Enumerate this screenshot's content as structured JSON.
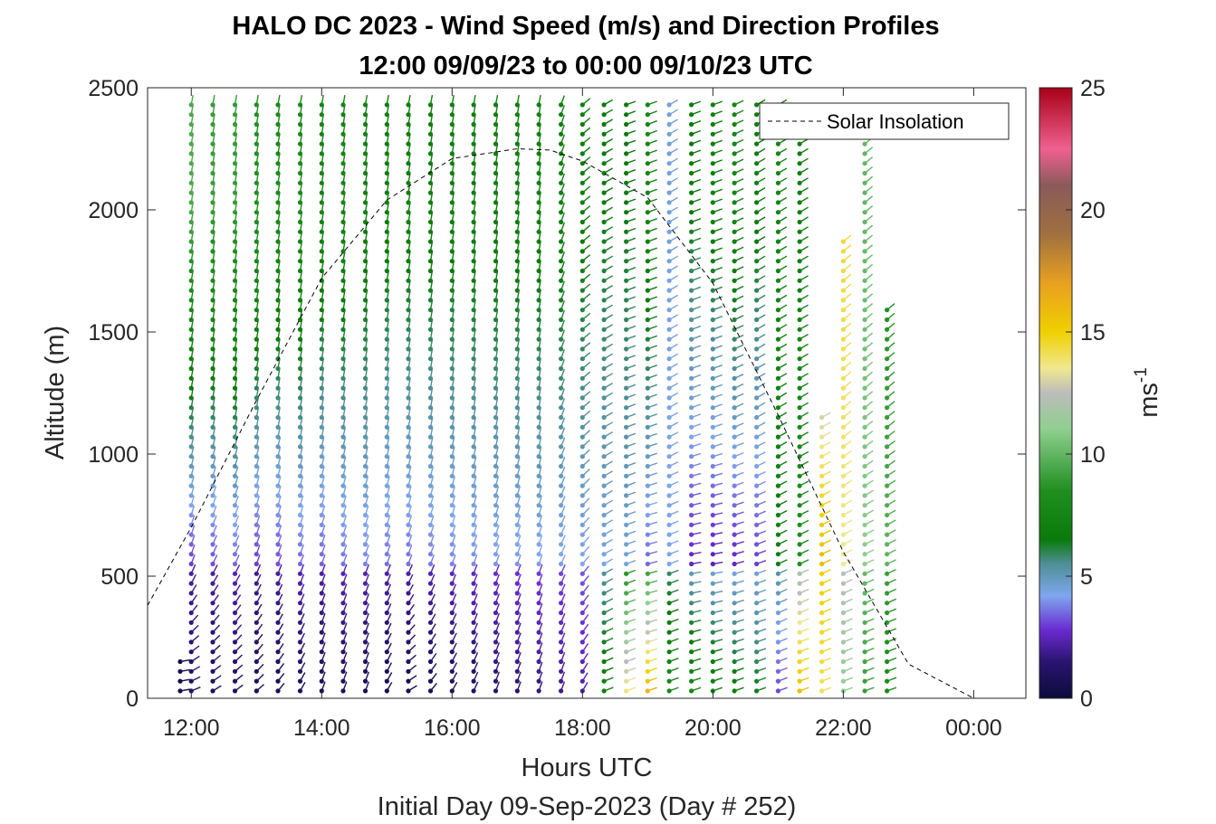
{
  "chart_data": {
    "type": "scatter",
    "title": "HALO DC 2023 - Wind Speed (m/s) and Direction Profiles",
    "subtitle": "12:00 09/09/23 to 00:00 09/10/23  UTC",
    "xlabel": "Hours UTC",
    "xlabel2": "Initial Day 09-Sep-2023 (Day # 252)",
    "ylabel": "Altitude (m)",
    "xlim": [
      11.33,
      24.8
    ],
    "ylim": [
      0,
      2500
    ],
    "x_ticks": [
      12,
      14,
      16,
      18,
      20,
      22,
      24
    ],
    "x_tick_labels": [
      "12:00",
      "14:00",
      "16:00",
      "18:00",
      "20:00",
      "22:00",
      "00:00"
    ],
    "y_ticks": [
      0,
      500,
      1000,
      1500,
      2000,
      2500
    ],
    "y_tick_labels": [
      "0",
      "500",
      "1000",
      "1500",
      "2000",
      "2500"
    ],
    "grid": false,
    "legend": {
      "entries": [
        "Solar Insolation"
      ],
      "placement": "top-right"
    },
    "colorbar": {
      "label": "ms",
      "label_exponent": "-1",
      "range": [
        0,
        25
      ],
      "ticks": [
        0,
        5,
        10,
        15,
        20,
        25
      ],
      "tick_labels": [
        "0",
        "5",
        "10",
        "15",
        "20",
        "25"
      ],
      "colormap_stops": [
        {
          "v": 0,
          "c": "#0b0b3b"
        },
        {
          "v": 1.5,
          "c": "#2b1470"
        },
        {
          "v": 2.8,
          "c": "#6a2bd0"
        },
        {
          "v": 4.2,
          "c": "#7fa6ef"
        },
        {
          "v": 5.5,
          "c": "#4f8f96"
        },
        {
          "v": 6.5,
          "c": "#0a7a0a"
        },
        {
          "v": 8.5,
          "c": "#1f8f1f"
        },
        {
          "v": 11,
          "c": "#8fcf8f"
        },
        {
          "v": 12.5,
          "c": "#bcbcbc"
        },
        {
          "v": 13.5,
          "c": "#f0e890"
        },
        {
          "v": 15,
          "c": "#f0d000"
        },
        {
          "v": 17,
          "c": "#e8a020"
        },
        {
          "v": 19,
          "c": "#a07040"
        },
        {
          "v": 21,
          "c": "#8a5a5a"
        },
        {
          "v": 22.5,
          "c": "#f06090"
        },
        {
          "v": 25,
          "c": "#a80018"
        }
      ]
    },
    "solar_insolation": {
      "style": "dashed",
      "color": "#000000",
      "x": [
        11.33,
        12.0,
        13.0,
        14.0,
        15.0,
        16.0,
        17.0,
        17.5,
        18.0,
        19.0,
        20.0,
        21.0,
        22.0,
        23.0,
        24.0,
        24.8
      ],
      "y": [
        380,
        700,
        1220,
        1720,
        2040,
        2210,
        2250,
        2245,
        2200,
        2050,
        1700,
        1160,
        600,
        140,
        0,
        0
      ]
    },
    "profiles": [
      {
        "time": 11.83,
        "top": 150,
        "low_speed": 0.5,
        "mid_speed": 0.8,
        "upper_speed": 0.8,
        "dir_low": 260,
        "dir_mid": 260,
        "dir_up": 260
      },
      {
        "time": 12.0,
        "top": 2460,
        "low_speed": 1.0,
        "mid_speed": 3.0,
        "upper_speed": 9.5,
        "dir_low": 250,
        "dir_mid": 200,
        "dir_up": 190
      },
      {
        "time": 12.33,
        "top": 2460,
        "low_speed": 0.8,
        "mid_speed": 3.2,
        "upper_speed": 9.0,
        "dir_low": 240,
        "dir_mid": 205,
        "dir_up": 190
      },
      {
        "time": 12.67,
        "top": 2460,
        "low_speed": 0.9,
        "mid_speed": 3.5,
        "upper_speed": 9.0,
        "dir_low": 235,
        "dir_mid": 205,
        "dir_up": 190
      },
      {
        "time": 13.0,
        "top": 2460,
        "low_speed": 0.7,
        "mid_speed": 3.0,
        "upper_speed": 8.5,
        "dir_low": 230,
        "dir_mid": 200,
        "dir_up": 190
      },
      {
        "time": 13.33,
        "top": 2460,
        "low_speed": 0.6,
        "mid_speed": 3.2,
        "upper_speed": 8.0,
        "dir_low": 220,
        "dir_mid": 200,
        "dir_up": 190
      },
      {
        "time": 13.67,
        "top": 2460,
        "low_speed": 0.8,
        "mid_speed": 3.5,
        "upper_speed": 8.0,
        "dir_low": 210,
        "dir_mid": 200,
        "dir_up": 190
      },
      {
        "time": 14.0,
        "top": 2460,
        "low_speed": 0.7,
        "mid_speed": 3.4,
        "upper_speed": 7.5,
        "dir_low": 200,
        "dir_mid": 200,
        "dir_up": 190
      },
      {
        "time": 14.33,
        "top": 2460,
        "low_speed": 0.8,
        "mid_speed": 3.6,
        "upper_speed": 7.5,
        "dir_low": 200,
        "dir_mid": 200,
        "dir_up": 190
      },
      {
        "time": 14.67,
        "top": 2460,
        "low_speed": 0.6,
        "mid_speed": 3.8,
        "upper_speed": 7.2,
        "dir_low": 200,
        "dir_mid": 200,
        "dir_up": 190
      },
      {
        "time": 15.0,
        "top": 2460,
        "low_speed": 0.5,
        "mid_speed": 3.6,
        "upper_speed": 7.0,
        "dir_low": 210,
        "dir_mid": 200,
        "dir_up": 190
      },
      {
        "time": 15.33,
        "top": 2460,
        "low_speed": 0.4,
        "mid_speed": 3.6,
        "upper_speed": 7.0,
        "dir_low": 240,
        "dir_mid": 200,
        "dir_up": 190
      },
      {
        "time": 15.67,
        "top": 2460,
        "low_speed": 0.6,
        "mid_speed": 3.7,
        "upper_speed": 7.0,
        "dir_low": 220,
        "dir_mid": 200,
        "dir_up": 190
      },
      {
        "time": 16.0,
        "top": 2460,
        "low_speed": 0.8,
        "mid_speed": 3.8,
        "upper_speed": 7.0,
        "dir_low": 210,
        "dir_mid": 200,
        "dir_up": 190
      },
      {
        "time": 16.33,
        "top": 2460,
        "low_speed": 1.0,
        "mid_speed": 3.9,
        "upper_speed": 7.0,
        "dir_low": 205,
        "dir_mid": 200,
        "dir_up": 190
      },
      {
        "time": 16.67,
        "top": 2460,
        "low_speed": 1.2,
        "mid_speed": 4.0,
        "upper_speed": 7.0,
        "dir_low": 200,
        "dir_mid": 200,
        "dir_up": 190
      },
      {
        "time": 17.0,
        "top": 2460,
        "low_speed": 1.4,
        "mid_speed": 4.0,
        "upper_speed": 7.0,
        "dir_low": 200,
        "dir_mid": 200,
        "dir_up": 190
      },
      {
        "time": 17.33,
        "top": 2460,
        "low_speed": 1.6,
        "mid_speed": 4.1,
        "upper_speed": 7.0,
        "dir_low": 200,
        "dir_mid": 200,
        "dir_up": 190
      },
      {
        "time": 17.67,
        "top": 2460,
        "low_speed": 1.8,
        "mid_speed": 4.1,
        "upper_speed": 7.0,
        "dir_low": 200,
        "dir_mid": 205,
        "dir_up": 200
      },
      {
        "time": 18.0,
        "top": 2440,
        "low_speed": 2.2,
        "mid_speed": 4.2,
        "upper_speed": 6.8,
        "dir_low": 210,
        "dir_mid": 220,
        "dir_up": 230
      },
      {
        "time": 18.33,
        "top": 2440,
        "low_speed": 7.0,
        "mid_speed": 4.3,
        "upper_speed": 6.5,
        "dir_low": 250,
        "dir_mid": 240,
        "dir_up": 240
      },
      {
        "time": 18.67,
        "top": 2440,
        "low_speed": 14.0,
        "mid_speed": 4.4,
        "upper_speed": 6.5,
        "dir_low": 250,
        "dir_mid": 250,
        "dir_up": 250
      },
      {
        "time": 19.0,
        "top": 2440,
        "low_speed": 16.5,
        "mid_speed": 3.5,
        "upper_speed": 7.5,
        "dir_low": 250,
        "dir_mid": 255,
        "dir_up": 250
      },
      {
        "time": 19.33,
        "top": 2440,
        "low_speed": 8.0,
        "mid_speed": 4.2,
        "upper_speed": 4.5,
        "dir_low": 250,
        "dir_mid": 250,
        "dir_up": 240
      },
      {
        "time": 19.67,
        "top": 2440,
        "low_speed": 8.0,
        "mid_speed": 2.6,
        "upper_speed": 6.5,
        "dir_low": 250,
        "dir_mid": 260,
        "dir_up": 250
      },
      {
        "time": 20.0,
        "top": 2440,
        "low_speed": 7.5,
        "mid_speed": 2.4,
        "upper_speed": 7.0,
        "dir_low": 250,
        "dir_mid": 260,
        "dir_up": 250
      },
      {
        "time": 20.33,
        "top": 2440,
        "low_speed": 7.0,
        "mid_speed": 2.6,
        "upper_speed": 7.5,
        "dir_low": 250,
        "dir_mid": 255,
        "dir_up": 245
      },
      {
        "time": 20.67,
        "top": 2440,
        "low_speed": 6.5,
        "mid_speed": 3.0,
        "upper_speed": 6.8,
        "dir_low": 250,
        "dir_mid": 250,
        "dir_up": 240
      },
      {
        "time": 21.0,
        "top": 2440,
        "low_speed": 3.0,
        "mid_speed": 7.0,
        "upper_speed": 7.5,
        "dir_low": 250,
        "dir_mid": 245,
        "dir_up": 240
      },
      {
        "time": 21.33,
        "top": 2400,
        "low_speed": 16.0,
        "mid_speed": 8.5,
        "upper_speed": 7.0,
        "dir_low": 250,
        "dir_mid": 245,
        "dir_up": 240
      },
      {
        "time": 21.67,
        "top": 1150,
        "low_speed": 14.0,
        "mid_speed": 16.0,
        "upper_speed": 9.5,
        "dir_low": 250,
        "dir_mid": 245,
        "dir_up": 240
      },
      {
        "time": 22.0,
        "top": 1900,
        "low_speed": 11.0,
        "mid_speed": 13.5,
        "upper_speed": 14.5,
        "dir_low": 250,
        "dir_mid": 245,
        "dir_up": 230
      },
      {
        "time": 22.33,
        "top": 2420,
        "low_speed": 9.0,
        "mid_speed": 11.0,
        "upper_speed": 10.0,
        "dir_low": 250,
        "dir_mid": 245,
        "dir_up": 230
      },
      {
        "time": 22.67,
        "top": 1620,
        "low_speed": 8.0,
        "mid_speed": 10.0,
        "upper_speed": 8.0,
        "dir_low": 250,
        "dir_mid": 245,
        "dir_up": 230
      }
    ]
  }
}
